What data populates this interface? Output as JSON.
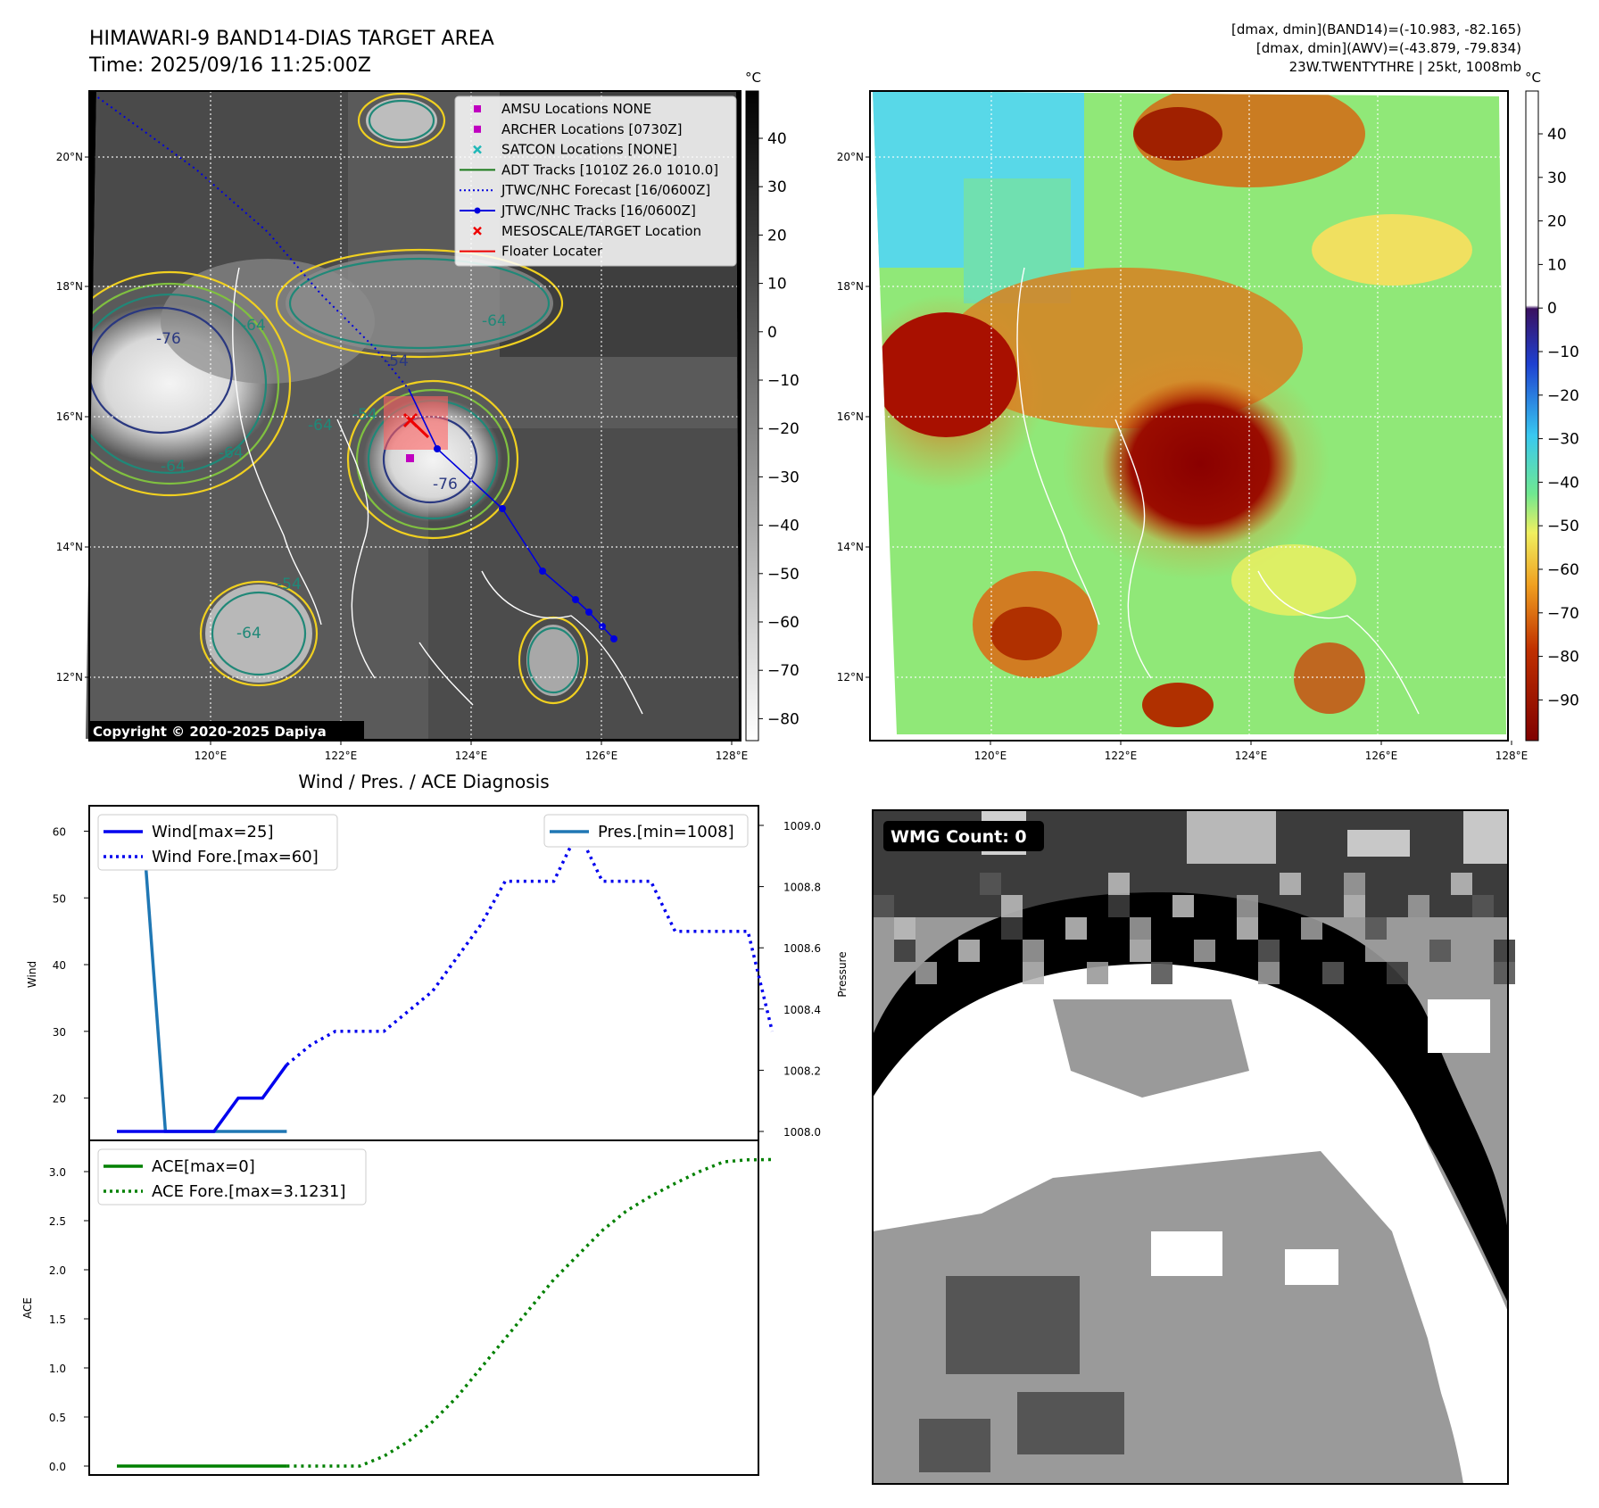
{
  "header": {
    "title_line1": "HIMAWARI-9 BAND14-DIAS TARGET AREA",
    "title_line2": "Time: 2025/09/16 11:25:00Z",
    "info_line1": "[dmax, dmin](BAND14)=(-10.983, -82.165)",
    "info_line2": "[dmax, dmin](AWV)=(-43.879, -79.834)",
    "info_line3": "23W.TWENTYTHRE | 25kt, 1008mb"
  },
  "map_axes": {
    "lon_ticks": [
      "120°E",
      "122°E",
      "124°E",
      "126°E",
      "128°E"
    ],
    "lat_ticks": [
      "20°N",
      "18°N",
      "16°N",
      "14°N",
      "12°N"
    ]
  },
  "ir_panel": {
    "copyright": "Copyright © 2020-2025 Dapiya",
    "contour_labels": [
      "-76",
      "-64",
      "-64",
      "-54",
      "-64",
      "-64",
      "-76",
      "-64",
      "-54",
      "-54",
      "-64"
    ],
    "legend": [
      {
        "label": "AMSU Locations NONE",
        "marker": "square",
        "color": "#c000c0"
      },
      {
        "label": "ARCHER Locations [0730Z]",
        "marker": "square",
        "color": "#c000c0"
      },
      {
        "label": "SATCON Locations [NONE]",
        "marker": "x",
        "color": "#20b8b8"
      },
      {
        "label": "ADT Tracks [1010Z 26.0 1010.0]",
        "marker": "line",
        "color": "#1a7a1a"
      },
      {
        "label": "JTWC/NHC Forecast [16/0600Z]",
        "marker": "dotted",
        "color": "#0000dd"
      },
      {
        "label": "JTWC/NHC Tracks [16/0600Z]",
        "marker": "line-dot",
        "color": "#0000dd"
      },
      {
        "label": "MESOSCALE/TARGET Location",
        "marker": "x",
        "color": "#ee0000"
      },
      {
        "label": "Floater Locater",
        "marker": "line",
        "color": "#ee0000"
      }
    ],
    "colorbar": {
      "unit": "°C",
      "ticks": [
        "40",
        "30",
        "20",
        "10",
        "0",
        "−10",
        "−20",
        "−30",
        "−40",
        "−50",
        "−60",
        "−70",
        "−80"
      ]
    }
  },
  "awv_panel": {
    "colorbar": {
      "unit": "°C",
      "ticks": [
        "40",
        "30",
        "20",
        "10",
        "0",
        "−10",
        "−20",
        "−30",
        "−40",
        "−50",
        "−60",
        "−70",
        "−80",
        "−90"
      ]
    }
  },
  "diagnosis": {
    "title": "Wind / Pres. / ACE Diagnosis",
    "wind_ylabel": "Wind",
    "pres_ylabel": "Pressure",
    "ace_ylabel": "ACE",
    "wind_legend": [
      "Wind[max=25]",
      "Wind Fore.[max=60]"
    ],
    "pres_legend": [
      "Pres.[min=1008]"
    ],
    "ace_legend": [
      "ACE[max=0]",
      "ACE Fore.[max=3.1231]"
    ],
    "wind_ticks": [
      "60",
      "50",
      "40",
      "30",
      "20"
    ],
    "pres_ticks": [
      "1009.0",
      "1008.8",
      "1008.6",
      "1008.4",
      "1008.2",
      "1008.0"
    ],
    "ace_ticks": [
      "3.0",
      "2.5",
      "2.0",
      "1.5",
      "1.0",
      "0.5",
      "0.0"
    ]
  },
  "wmg_panel": {
    "count_label": "WMG Count: 0"
  },
  "chart_data": [
    {
      "type": "line",
      "title": "Wind / Pres. / ACE Diagnosis",
      "xlabel": "",
      "ylabel": "Wind",
      "ylim": [
        15,
        61
      ],
      "series": [
        {
          "name": "Wind[max=25]",
          "style": "solid",
          "color": "#0000ee",
          "x": [
            0,
            1,
            2,
            3,
            4,
            5,
            6,
            7
          ],
          "y": [
            15,
            15,
            15,
            15,
            15,
            20,
            20,
            25
          ]
        },
        {
          "name": "Wind Fore.[max=60]",
          "style": "dotted",
          "color": "#0000ee",
          "x": [
            7,
            8,
            9,
            10,
            11,
            12,
            13,
            14,
            15,
            16,
            17,
            18,
            19,
            20,
            21,
            22,
            23,
            24,
            25,
            26,
            27
          ],
          "y": [
            25,
            28,
            30,
            30,
            30,
            33,
            36,
            41,
            46,
            52.5,
            52.5,
            52.5,
            60,
            52.5,
            52.5,
            52.5,
            45,
            45,
            45,
            45,
            30
          ]
        }
      ]
    },
    {
      "type": "line",
      "ylabel": "Pressure",
      "ylim": [
        1007.99,
        1009.01
      ],
      "series": [
        {
          "name": "Pres.[min=1008]",
          "style": "solid",
          "color": "#1f77b4",
          "x": [
            0,
            1,
            2,
            3,
            4,
            5,
            6,
            7
          ],
          "y": [
            1009.0,
            1009.0,
            1008.0,
            1008.0,
            1008.0,
            1008.0,
            1008.0,
            1008.0
          ]
        }
      ]
    },
    {
      "type": "line",
      "ylabel": "ACE",
      "ylim": [
        -0.05,
        3.3
      ],
      "series": [
        {
          "name": "ACE[max=0]",
          "style": "solid",
          "color": "#008000",
          "x": [
            0,
            7
          ],
          "y": [
            0,
            0
          ]
        },
        {
          "name": "ACE Fore.[max=3.1231]",
          "style": "dotted",
          "color": "#008000",
          "x": [
            7,
            8,
            9,
            10,
            11,
            12,
            13,
            14,
            15,
            16,
            17,
            18,
            19,
            20,
            21,
            22,
            23,
            24,
            25,
            26,
            27
          ],
          "y": [
            0,
            0,
            0,
            0,
            0.1,
            0.25,
            0.45,
            0.7,
            1.0,
            1.3,
            1.6,
            1.9,
            2.15,
            2.4,
            2.6,
            2.75,
            2.88,
            3.0,
            3.1,
            3.12,
            3.1231
          ]
        }
      ]
    }
  ]
}
